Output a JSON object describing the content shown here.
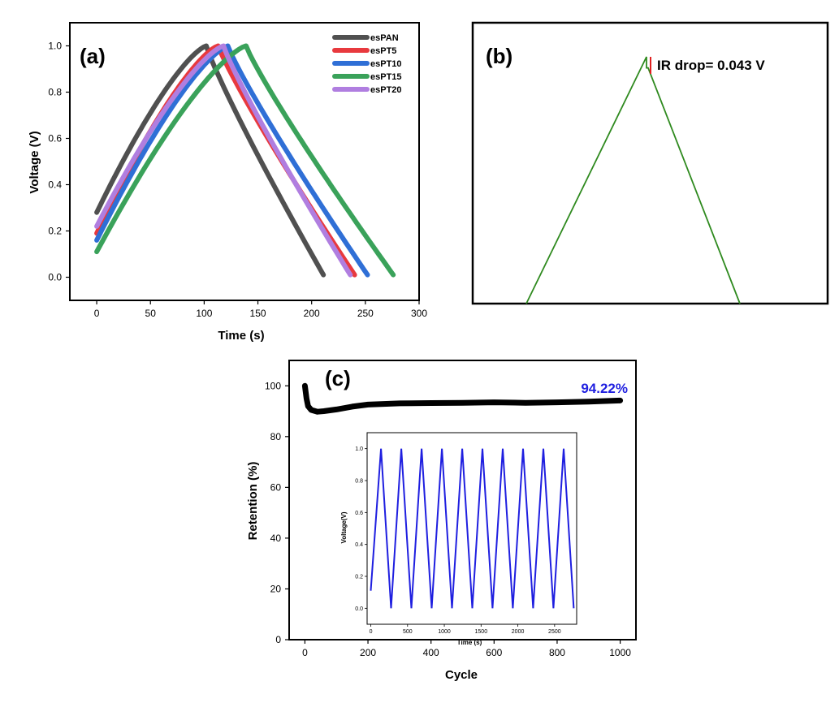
{
  "chart_data": [
    {
      "id": "a",
      "type": "line",
      "panel_label": "(a)",
      "xlabel": "Time (s)",
      "ylabel": "Voltage (V)",
      "xlim": [
        -25,
        300
      ],
      "ylim": [
        -0.1,
        1.1
      ],
      "xticks": [
        0,
        50,
        100,
        150,
        200,
        250,
        300
      ],
      "yticks": [
        0.0,
        0.2,
        0.4,
        0.6,
        0.8,
        1.0
      ],
      "legend_position": "top-right",
      "series": [
        {
          "name": "esPAN",
          "color": "#505050",
          "v0": 0.28,
          "t_peak": 102,
          "t_end": 211,
          "v_end": 0.01
        },
        {
          "name": "esPT5",
          "color": "#e8393e",
          "v0": 0.19,
          "t_peak": 113,
          "t_end": 240,
          "v_end": 0.01
        },
        {
          "name": "esPT10",
          "color": "#2f6fd6",
          "v0": 0.16,
          "t_peak": 122,
          "t_end": 252,
          "v_end": 0.01
        },
        {
          "name": "esPT15",
          "color": "#3aa25a",
          "v0": 0.11,
          "t_peak": 139,
          "t_end": 276,
          "v_end": 0.01
        },
        {
          "name": "esPT20",
          "color": "#b07ee0",
          "v0": 0.22,
          "t_peak": 118,
          "t_end": 236,
          "v_end": 0.01
        }
      ]
    },
    {
      "id": "b",
      "type": "line",
      "panel_label": "(b)",
      "annotation": "IR drop= 0.043 V",
      "series": [
        {
          "color": "#2f8a1f",
          "peak_v": 0.96,
          "ir_drop": 0.043
        }
      ]
    },
    {
      "id": "c",
      "type": "line",
      "panel_label": "(c)",
      "xlabel": "Cycle",
      "ylabel": "Retention (%)",
      "xlim": [
        -50,
        1050
      ],
      "ylim": [
        0,
        110
      ],
      "xticks": [
        0,
        200,
        400,
        600,
        800,
        1000
      ],
      "yticks": [
        0,
        20,
        40,
        60,
        80,
        100
      ],
      "retention_label": "94.22%",
      "retention_color": "#1f1fe0",
      "series": [
        {
          "color": "#000000",
          "x": [
            0,
            5,
            10,
            20,
            40,
            60,
            100,
            150,
            200,
            300,
            400,
            500,
            600,
            700,
            800,
            900,
            1000
          ],
          "y": [
            100,
            95,
            92,
            90.5,
            89.8,
            90,
            90.7,
            91.8,
            92.6,
            93.1,
            93.2,
            93.3,
            93.5,
            93.3,
            93.5,
            93.8,
            94.2
          ]
        }
      ],
      "inset": {
        "xlabel": "Time (s)",
        "ylabel": "Voltage(V)",
        "xlim": [
          -50,
          2800
        ],
        "ylim": [
          -0.1,
          1.1
        ],
        "xticks": [
          0,
          500,
          1000,
          1500,
          2000,
          2500
        ],
        "yticks": [
          0.0,
          0.2,
          0.4,
          0.6,
          0.8,
          1.0
        ],
        "color": "#1f1fe0",
        "cycle_period": 276,
        "charge_time": 139,
        "cycles": 10,
        "v_start": 0.11
      }
    }
  ]
}
